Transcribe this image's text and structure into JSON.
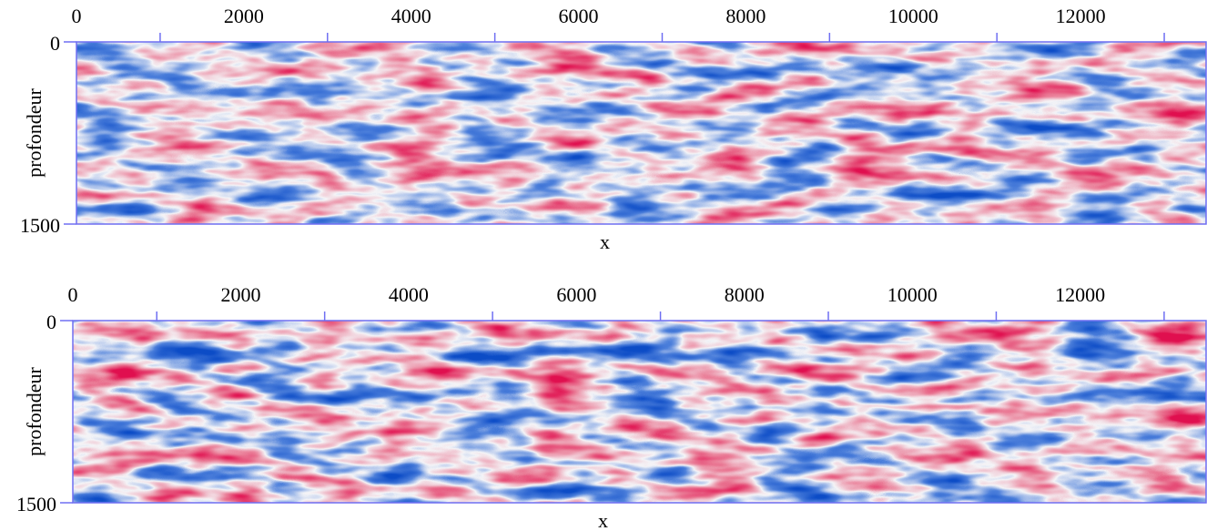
{
  "chart_data": [
    {
      "type": "heatmap",
      "xlabel": "x",
      "ylabel": "profondeur",
      "xlim": [
        0,
        13500
      ],
      "ylim": [
        0,
        1500
      ],
      "y_inverted": true,
      "x_axis_position": "top",
      "xticks": [
        0,
        2000,
        4000,
        6000,
        8000,
        10000,
        12000
      ],
      "xminorticks": [
        1000,
        3000,
        5000,
        7000,
        9000,
        11000,
        13000
      ],
      "yticks": [
        0,
        1500
      ],
      "axis_color": "#6f6ff2",
      "colormap": [
        "#0d4fc8",
        "#f4f4f8",
        "#e0104f"
      ]
    },
    {
      "type": "heatmap",
      "xlabel": "x",
      "ylabel": "profondeur",
      "xlim": [
        0,
        13500
      ],
      "ylim": [
        0,
        1500
      ],
      "y_inverted": true,
      "x_axis_position": "top",
      "xticks": [
        0,
        2000,
        4000,
        6000,
        8000,
        10000,
        12000
      ],
      "xminorticks": [
        1000,
        3000,
        5000,
        7000,
        9000,
        11000,
        13000
      ],
      "yticks": [
        0,
        1500
      ],
      "axis_color": "#6f6ff2",
      "colormap": [
        "#0d4fc8",
        "#f4f4f8",
        "#e0104f"
      ]
    }
  ]
}
